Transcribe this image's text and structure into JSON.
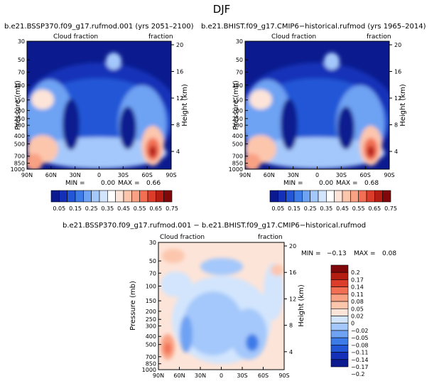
{
  "page_title": "DJF",
  "palette": {
    "abs": [
      "#0b1b8f",
      "#1430b8",
      "#2256d6",
      "#3d7ce8",
      "#6ea2f3",
      "#a4c8fb",
      "#d2e5fd",
      "#ffffff",
      "#fde4d8",
      "#fcc6ad",
      "#f9a183",
      "#f26f54",
      "#dc3d2a",
      "#b51d12",
      "#80070a"
    ],
    "diff": [
      "#0b1b8f",
      "#1430b8",
      "#2256d6",
      "#3d7ce8",
      "#6ea2f3",
      "#a4c8fb",
      "#d2e5fd",
      "#fde4d8",
      "#fcc6ad",
      "#f9a183",
      "#f26f54",
      "#dc3d2a",
      "#b51d12",
      "#80070a"
    ]
  },
  "chart_data": [
    {
      "type": "heatmap",
      "title": "b.e21.BSSP370.f09_g17.rufmod.001 (yrs 2051–2100)",
      "subtitle_left": "Cloud fraction",
      "subtitle_right": "fraction",
      "xlabel": "",
      "ylabel": "Pressure (mb)",
      "ylabel_right": "Height (km)",
      "x_ticks": [
        "90N",
        "60N",
        "30N",
        "0",
        "30S",
        "60S",
        "90S"
      ],
      "y_ticks": [
        "30",
        "50",
        "70",
        "100",
        "150",
        "200",
        "250",
        "300",
        "400",
        "500",
        "700",
        "850",
        "1000"
      ],
      "height_ticks": [
        "20",
        "16",
        "12",
        "8",
        "4"
      ],
      "min_text": "MIN =",
      "min_value": "0.00",
      "max_text": "MAX =",
      "max_value": "0.66",
      "colorbar_labels": [
        "0.05",
        "0.15",
        "0.25",
        "0.35",
        "0.45",
        "0.55",
        "0.65",
        "0.75"
      ]
    },
    {
      "type": "heatmap",
      "title": "b.e21.BHIST.f09_g17.CMIP6−historical.rufmod (yrs 1965–2014)",
      "subtitle_left": "Cloud fraction",
      "subtitle_right": "fraction",
      "xlabel": "",
      "ylabel": "Pressure (mb)",
      "ylabel_right": "Height (km)",
      "x_ticks": [
        "90N",
        "60N",
        "30N",
        "0",
        "30S",
        "60S",
        "90S"
      ],
      "y_ticks": [
        "30",
        "50",
        "70",
        "100",
        "150",
        "200",
        "250",
        "300",
        "400",
        "500",
        "700",
        "850",
        "1000"
      ],
      "height_ticks": [
        "20",
        "16",
        "12",
        "8",
        "4"
      ],
      "min_text": "MIN =",
      "min_value": "0.00",
      "max_text": "MAX =",
      "max_value": "0.68",
      "colorbar_labels": [
        "0.05",
        "0.15",
        "0.25",
        "0.35",
        "0.45",
        "0.55",
        "0.65",
        "0.75"
      ]
    },
    {
      "type": "heatmap",
      "title": "b.e21.BSSP370.f09_g17.rufmod.001 − b.e21.BHIST.f09_g17.CMIP6−historical.rufmod",
      "subtitle_left": "Cloud fraction",
      "subtitle_right": "fraction",
      "xlabel": "",
      "ylabel": "Pressure (mb)",
      "ylabel_right": "Height (km)",
      "x_ticks": [
        "90N",
        "60N",
        "30N",
        "0",
        "30S",
        "60S",
        "90S"
      ],
      "y_ticks": [
        "30",
        "50",
        "70",
        "100",
        "150",
        "200",
        "250",
        "300",
        "400",
        "500",
        "700",
        "850",
        "1000"
      ],
      "height_ticks": [
        "20",
        "16",
        "12",
        "8",
        "4"
      ],
      "min_text": "MIN =",
      "min_value": "−0.13",
      "max_text": "MAX =",
      "max_value": "0.08",
      "colorbar_labels": [
        "0.2",
        "0.17",
        "0.14",
        "0.11",
        "0.08",
        "0.05",
        "0.02",
        "0",
        "−0.02",
        "−0.05",
        "−0.08",
        "−0.11",
        "−0.14",
        "−0.17",
        "−0.2"
      ]
    }
  ]
}
